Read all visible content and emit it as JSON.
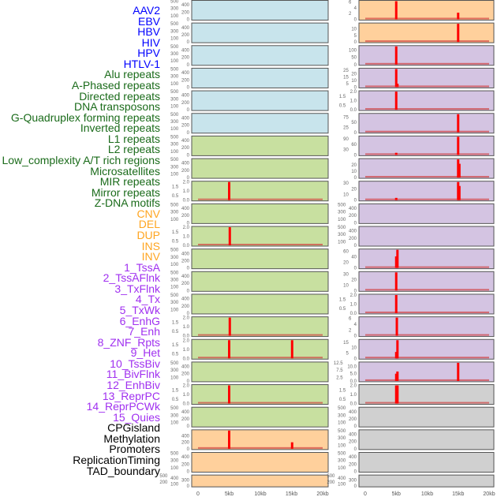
{
  "colors": {
    "virus": "#0000ff",
    "repeat": "#1a6b1a",
    "sv": "#ffa520",
    "chromhmm": "#a030f0",
    "other": "#000000",
    "bg_virus": "#c8e4ec",
    "bg_repeat": "#c8e0a0",
    "bg_sv": "#ffd09c",
    "bg_chromhmm": "#d4c4e2",
    "bg_other": "#d0d0d0",
    "bar": "#ff0000"
  },
  "chart_data": {
    "type": "bar",
    "xlabel": "",
    "xticks": [
      "0",
      "5kb",
      "10kb",
      "15kb",
      "20kb"
    ],
    "xlim": [
      0,
      20
    ],
    "columns": [
      [
        {
          "label": "AAV2",
          "group": "virus",
          "yticks": [
            "0",
            "100",
            "200",
            "300",
            "400",
            "500"
          ],
          "ylim": [
            0,
            500
          ],
          "bars": []
        },
        {
          "label": "EBV",
          "group": "virus",
          "yticks": [
            "0",
            "100",
            "200",
            "300",
            "400",
            "500"
          ],
          "ylim": [
            0,
            500
          ],
          "bars": []
        },
        {
          "label": "HBV",
          "group": "virus",
          "yticks": [
            "0",
            "100",
            "200",
            "300",
            "400",
            "500"
          ],
          "ylim": [
            0,
            500
          ],
          "bars": []
        },
        {
          "label": "HIV",
          "group": "virus",
          "yticks": [
            "0",
            "100",
            "200",
            "300",
            "400",
            "500"
          ],
          "ylim": [
            0,
            500
          ],
          "bars": []
        },
        {
          "label": "HPV",
          "group": "virus",
          "yticks": [
            "0",
            "100",
            "200",
            "300",
            "400",
            "500"
          ],
          "ylim": [
            0,
            500
          ],
          "bars": []
        },
        {
          "label": "HTLV-1",
          "group": "virus",
          "yticks": [
            "0",
            "100",
            "200",
            "300",
            "400",
            "500"
          ],
          "ylim": [
            0,
            500
          ],
          "bars": []
        },
        {
          "label": "Alu repeats",
          "group": "repeat",
          "yticks": [
            "0",
            "100",
            "200",
            "300",
            "400",
            "500"
          ],
          "ylim": [
            0,
            500
          ],
          "bars": []
        },
        {
          "label": "A-Phased repeats",
          "group": "repeat",
          "yticks": [
            "0",
            "100",
            "200",
            "300",
            "400",
            "500"
          ],
          "ylim": [
            0,
            500
          ],
          "bars": []
        },
        {
          "label": "Directed repeats",
          "group": "repeat",
          "yticks": [
            "0.0",
            "0.5",
            "1.0",
            "1.5",
            "2.0"
          ],
          "ylim": [
            0,
            2
          ],
          "bars": [
            [
              5,
              2
            ]
          ]
        },
        {
          "label": "DNA transposons",
          "group": "repeat",
          "yticks": [
            "0",
            "100",
            "200",
            "300",
            "400",
            "500"
          ],
          "ylim": [
            0,
            500
          ],
          "bars": []
        },
        {
          "label": "G-Quadruplex forming repeats",
          "group": "repeat",
          "yticks": [
            "0.0",
            "0.5",
            "1.0",
            "1.5",
            "2.0"
          ],
          "ylim": [
            0,
            2
          ],
          "bars": [
            [
              5.1,
              2
            ]
          ]
        },
        {
          "label": "Inverted repeats",
          "group": "repeat",
          "yticks": [
            "0",
            "100",
            "200",
            "300",
            "400",
            "500"
          ],
          "ylim": [
            0,
            500
          ],
          "bars": []
        },
        {
          "label": "L1 repeats",
          "group": "repeat",
          "yticks": [
            "0",
            "100",
            "200",
            "300",
            "400",
            "500"
          ],
          "ylim": [
            0,
            500
          ],
          "bars": []
        },
        {
          "label": "L2 repeats",
          "group": "repeat",
          "yticks": [
            "0",
            "100",
            "200",
            "300",
            "400",
            "500"
          ],
          "ylim": [
            0,
            500
          ],
          "bars": []
        },
        {
          "label": "Low_complexity A/T rich regions",
          "group": "repeat",
          "yticks": [
            "0.0",
            "0.5",
            "1.0",
            "1.5",
            "2.0"
          ],
          "ylim": [
            0,
            2
          ],
          "bars": [
            [
              5.1,
              2
            ]
          ]
        },
        {
          "label": "Microsatellites",
          "group": "repeat",
          "yticks": [
            "0.0",
            "0.5",
            "1.0",
            "1.5",
            "2.0"
          ],
          "ylim": [
            0,
            2
          ],
          "bars": [
            [
              5,
              2
            ],
            [
              15.1,
              2
            ]
          ]
        },
        {
          "label": "MIR repeats",
          "group": "repeat",
          "yticks": [
            "0",
            "100",
            "200",
            "300",
            "400",
            "500"
          ],
          "ylim": [
            0,
            500
          ],
          "bars": []
        },
        {
          "label": "Mirror repeats",
          "group": "repeat",
          "yticks": [
            "0.0",
            "0.5",
            "1.0",
            "1.5",
            "2.0"
          ],
          "ylim": [
            0,
            2
          ],
          "bars": [
            [
              5,
              2
            ]
          ]
        },
        {
          "label": "Z-DNA motifs",
          "group": "repeat",
          "yticks": [
            "0",
            "100",
            "200",
            "300",
            "400",
            "500"
          ],
          "ylim": [
            0,
            500
          ],
          "bars": []
        },
        {
          "label": "CNV",
          "group": "sv",
          "yticks": [
            "0",
            "200",
            "400"
          ],
          "ylim": [
            0,
            560
          ],
          "bars": [
            [
              5,
              560
            ],
            [
              15.1,
              200
            ]
          ]
        },
        {
          "label": "DEL",
          "group": "sv",
          "yticks": [
            "0",
            "100",
            "200",
            "300",
            "400",
            "500"
          ],
          "ylim": [
            0,
            500
          ],
          "bars": []
        },
        {
          "label": "DUP",
          "group": "sv",
          "yticks": [
            "0",
            "100",
            "200",
            "300",
            "400",
            "500"
          ],
          "ylim": [
            0,
            500
          ],
          "bars": []
        }
      ],
      [
        {
          "label": "INS",
          "group": "sv",
          "yticks": [
            "0",
            "2",
            "4",
            "6"
          ],
          "ylim": [
            0,
            6.3
          ],
          "bars": [
            [
              5,
              6.3
            ],
            [
              15,
              2.3
            ]
          ]
        },
        {
          "label": "INV",
          "group": "sv",
          "yticks": [
            "0",
            "5",
            "10"
          ],
          "ylim": [
            0,
            14
          ],
          "bars": [
            [
              15,
              14
            ]
          ]
        },
        {
          "label": "1_TssA",
          "group": "chromhmm",
          "yticks": [
            "0",
            "50",
            "100"
          ],
          "ylim": [
            0,
            125
          ],
          "bars": [
            [
              5,
              125
            ]
          ]
        },
        {
          "label": "2_TssAFlnk",
          "group": "chromhmm",
          "yticks": [
            "0",
            "5",
            "10",
            "15",
            "20",
            "25"
          ],
          "ylim": [
            0,
            27
          ],
          "bars": [
            [
              5,
              27
            ],
            [
              5.2,
              5
            ]
          ]
        },
        {
          "label": "3_TxFlnk",
          "group": "chromhmm",
          "yticks": [
            "0.0",
            "0.5",
            "1.0",
            "1.5",
            "2.0"
          ],
          "ylim": [
            0,
            2
          ],
          "bars": [
            [
              5,
              2
            ]
          ]
        },
        {
          "label": "4_Tx",
          "group": "chromhmm",
          "yticks": [
            "0",
            "25",
            "50",
            "75"
          ],
          "ylim": [
            0,
            90
          ],
          "bars": [
            [
              15,
              90
            ]
          ]
        },
        {
          "label": "5_TxWk",
          "group": "chromhmm",
          "yticks": [
            "0",
            "30",
            "60",
            "90"
          ],
          "ylim": [
            0,
            102
          ],
          "bars": [
            [
              5,
              12
            ],
            [
              15,
              102
            ]
          ]
        },
        {
          "label": "6_EnhG",
          "group": "chromhmm",
          "yticks": [
            "0",
            "10",
            "20"
          ],
          "ylim": [
            0,
            29
          ],
          "bars": [
            [
              15,
              29
            ],
            [
              15.2,
              22
            ]
          ]
        },
        {
          "label": "7_Enh",
          "group": "chromhmm",
          "yticks": [
            "0",
            "10",
            "20",
            "30"
          ],
          "ylim": [
            0,
            32
          ],
          "bars": [
            [
              5,
              4
            ],
            [
              15,
              32
            ],
            [
              15.2,
              25
            ]
          ]
        },
        {
          "label": "8_ZNF_Rpts",
          "group": "chromhmm",
          "yticks": [
            "0",
            "100",
            "200",
            "300",
            "400",
            "500"
          ],
          "ylim": [
            0,
            500
          ],
          "bars": []
        },
        {
          "label": "9_Het",
          "group": "chromhmm",
          "yticks": [
            "0",
            "100",
            "200",
            "300",
            "400",
            "500"
          ],
          "ylim": [
            0,
            500
          ],
          "bars": []
        },
        {
          "label": "10_TssBiv",
          "group": "chromhmm",
          "yticks": [
            "0",
            "20",
            "40",
            "60"
          ],
          "ylim": [
            0,
            66
          ],
          "bars": [
            [
              5,
              42
            ],
            [
              5.2,
              66
            ]
          ]
        },
        {
          "label": "11_BivFlnk",
          "group": "chromhmm",
          "yticks": [
            "0",
            "10",
            "20",
            "30"
          ],
          "ylim": [
            0,
            33
          ],
          "bars": [
            [
              5,
              33
            ]
          ]
        },
        {
          "label": "12_EnhBiv",
          "group": "chromhmm",
          "yticks": [
            "0.0",
            "0.5",
            "1.0",
            "1.5",
            "2.0"
          ],
          "ylim": [
            0,
            2
          ],
          "bars": [
            [
              5,
              2
            ]
          ]
        },
        {
          "label": "13_ReprPC",
          "group": "chromhmm",
          "yticks": [
            "0",
            "2",
            "4",
            "6"
          ],
          "ylim": [
            0,
            6.3
          ],
          "bars": [
            [
              5.1,
              6.3
            ]
          ]
        },
        {
          "label": "14_ReprPCWk",
          "group": "chromhmm",
          "yticks": [
            "0",
            "5",
            "10",
            "15"
          ],
          "ylim": [
            0,
            17
          ],
          "bars": [
            [
              5,
              6
            ],
            [
              5.2,
              17
            ]
          ]
        },
        {
          "label": "15_Quies",
          "group": "chromhmm",
          "yticks": [
            "0.0",
            "2.5",
            "5.0",
            "7.5",
            "10.0",
            "12.5"
          ],
          "ylim": [
            0,
            12.5
          ],
          "bars": [
            [
              5,
              5
            ],
            [
              5.2,
              6.5
            ],
            [
              15,
              12.5
            ]
          ]
        },
        {
          "label": "CPGisland",
          "group": "other",
          "yticks": [
            "0.0",
            "0.5",
            "1.0",
            "1.5",
            "2.0"
          ],
          "ylim": [
            0,
            2
          ],
          "bars": [
            [
              5,
              2
            ],
            [
              5.2,
              2
            ]
          ]
        },
        {
          "label": "Methylation",
          "group": "other",
          "yticks": [
            "0",
            "100",
            "200",
            "300",
            "400",
            "500"
          ],
          "ylim": [
            0,
            500
          ],
          "bars": []
        },
        {
          "label": "Promoters",
          "group": "other",
          "yticks": [
            "0",
            "100",
            "200",
            "300",
            "400",
            "500"
          ],
          "ylim": [
            0,
            500
          ],
          "bars": []
        },
        {
          "label": "ReplicationTiming",
          "group": "other",
          "yticks": [
            "0",
            "100",
            "200",
            "300",
            "400",
            "500"
          ],
          "ylim": [
            0,
            500
          ],
          "bars": []
        },
        {
          "label": "TAD_boundary",
          "group": "other",
          "yticks": [
            "0",
            "100",
            "200",
            "300",
            "400",
            "500"
          ],
          "ylim": [
            0,
            500
          ],
          "bars": []
        }
      ]
    ]
  }
}
